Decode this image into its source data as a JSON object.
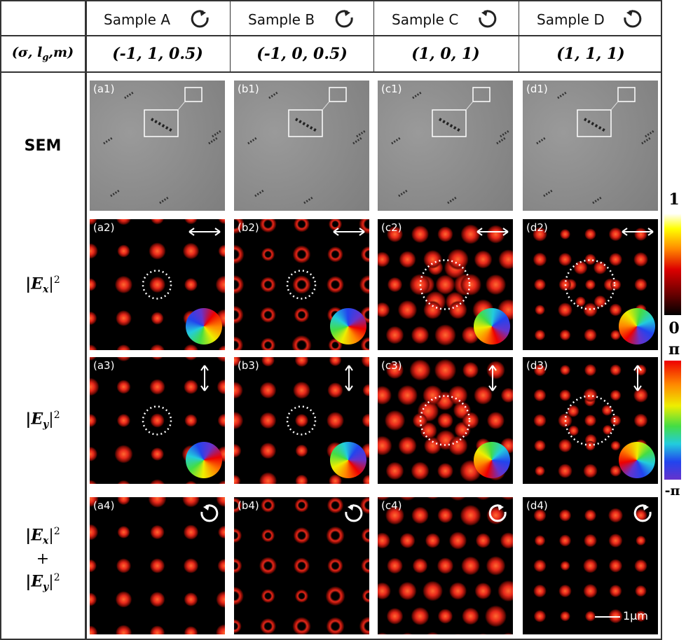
{
  "columns": [
    {
      "sample": "Sample A",
      "params": "(-1, 1, 0.5)",
      "panels": [
        "(a1)",
        "(a2)",
        "(a3)",
        "(a4)"
      ]
    },
    {
      "sample": "Sample B",
      "params": "(-1, 0, 0.5)",
      "panels": [
        "(b1)",
        "(b2)",
        "(b3)",
        "(b4)"
      ]
    },
    {
      "sample": "Sample C",
      "params": "(1, 0, 1)",
      "panels": [
        "(c1)",
        "(c2)",
        "(c3)",
        "(c4)"
      ]
    },
    {
      "sample": "Sample D",
      "params": "(1, 1, 1)",
      "panels": [
        "(d1)",
        "(d2)",
        "(d3)",
        "(d4)"
      ]
    }
  ],
  "param_label": {
    "open": "(σ, l",
    "sub": "g",
    "close": ",m)"
  },
  "rows": [
    {
      "label": "SEM"
    },
    {
      "label": {
        "a": "|E",
        "sub": "x",
        "b": "|",
        "sup": "2"
      }
    },
    {
      "label": {
        "a": "|E",
        "sub": "y",
        "b": "|",
        "sup": "2"
      }
    },
    {
      "label_top": {
        "a": "|E",
        "sub": "x",
        "b": "|",
        "sup": "2"
      },
      "plus": "+",
      "label_bottom": {
        "a": "|E",
        "sub": "y",
        "b": "|",
        "sup": "2"
      }
    }
  ],
  "colorbars": {
    "intensity": {
      "max": "1",
      "min": "0"
    },
    "phase": {
      "max": "π",
      "min": "-π"
    }
  },
  "scale_bar": "1μm"
}
